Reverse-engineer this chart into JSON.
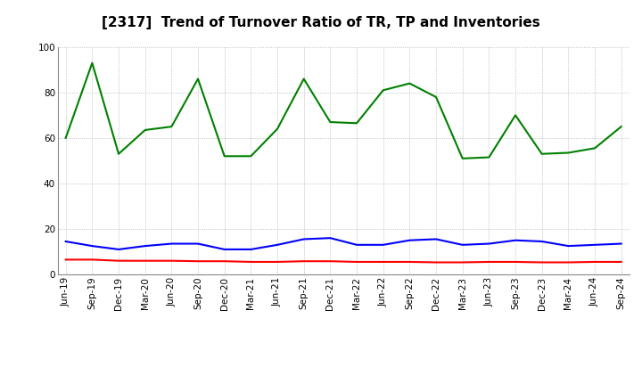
{
  "title": "[2317]  Trend of Turnover Ratio of TR, TP and Inventories",
  "x_labels": [
    "Jun-19",
    "Sep-19",
    "Dec-19",
    "Mar-20",
    "Jun-20",
    "Sep-20",
    "Dec-20",
    "Mar-21",
    "Jun-21",
    "Sep-21",
    "Dec-21",
    "Mar-22",
    "Jun-22",
    "Sep-22",
    "Dec-22",
    "Mar-23",
    "Jun-23",
    "Sep-23",
    "Dec-23",
    "Mar-24",
    "Jun-24",
    "Sep-24"
  ],
  "trade_receivables": [
    6.5,
    6.5,
    6.0,
    6.0,
    6.0,
    5.8,
    5.8,
    5.5,
    5.5,
    5.8,
    5.8,
    5.5,
    5.5,
    5.5,
    5.3,
    5.3,
    5.5,
    5.5,
    5.3,
    5.3,
    5.5,
    5.5
  ],
  "trade_payables": [
    14.5,
    12.5,
    11.0,
    12.5,
    13.5,
    13.5,
    11.0,
    11.0,
    13.0,
    15.5,
    16.0,
    13.0,
    13.0,
    15.0,
    15.5,
    13.0,
    13.5,
    15.0,
    14.5,
    12.5,
    13.0,
    13.5
  ],
  "inventories": [
    60.0,
    93.0,
    53.0,
    63.5,
    65.0,
    86.0,
    52.0,
    52.0,
    64.0,
    86.0,
    67.0,
    66.5,
    81.0,
    84.0,
    78.0,
    51.0,
    51.5,
    70.0,
    53.0,
    53.5,
    55.5,
    65.0
  ],
  "color_tr": "#ff0000",
  "color_tp": "#0000ff",
  "color_inv": "#008000",
  "ylim": [
    0.0,
    100.0
  ],
  "yticks": [
    0.0,
    20.0,
    40.0,
    60.0,
    80.0,
    100.0
  ],
  "background_color": "#ffffff",
  "grid_color": "#b0b0b0",
  "title_fontsize": 11,
  "tick_fontsize": 7.5,
  "legend_fontsize": 9,
  "line_width": 1.5
}
